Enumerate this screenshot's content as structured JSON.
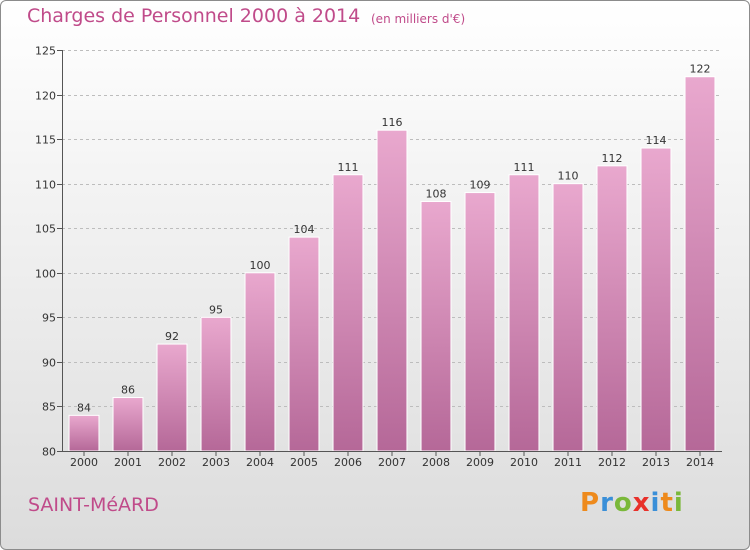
{
  "header": {
    "title": "Charges de Personnel 2000 à 2014",
    "subtitle": "(en milliers d'€)"
  },
  "footer": {
    "commune": "SAINT-MéARD",
    "logo_text": "Proxiti"
  },
  "colors": {
    "title": "#c04b8a",
    "bar_light": "#e9a8ce",
    "bar_dark": "#b56898",
    "logo_p": "#ee8a1c",
    "logo_r": "#3a8fd8",
    "logo_o": "#7ab83a",
    "logo_x": "#e8302a",
    "logo_i": "#3a8fd8",
    "logo_t": "#ee8a1c",
    "logo_i2": "#7ab83a"
  },
  "chart_data": {
    "type": "bar",
    "categories": [
      "2000",
      "2001",
      "2002",
      "2003",
      "2004",
      "2005",
      "2006",
      "2007",
      "2008",
      "2009",
      "2010",
      "2011",
      "2012",
      "2013",
      "2014"
    ],
    "values": [
      84,
      86,
      92,
      95,
      100,
      104,
      111,
      116,
      108,
      109,
      111,
      110,
      112,
      114,
      122
    ],
    "title": "Charges de Personnel 2000 à 2014",
    "xlabel": "",
    "ylabel": "",
    "ylim": [
      80,
      125
    ],
    "yticks": [
      80,
      85,
      90,
      95,
      100,
      105,
      110,
      115,
      120,
      125
    ],
    "grid": true,
    "data_labels": true
  }
}
